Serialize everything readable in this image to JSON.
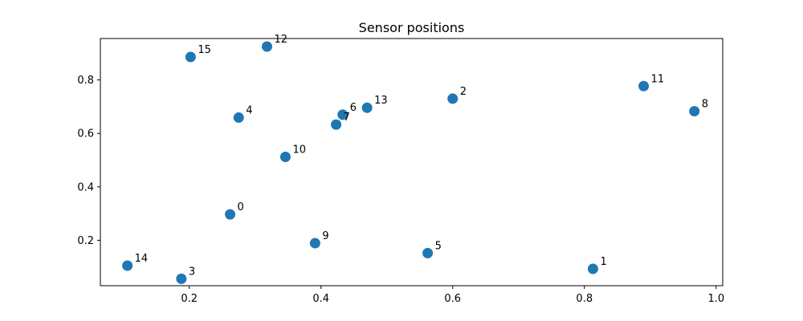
{
  "chart_data": {
    "type": "scatter",
    "title": "Sensor positions",
    "xlabel": "",
    "ylabel": "",
    "xlim": [
      0.065,
      1.01
    ],
    "ylim": [
      0.03,
      0.955
    ],
    "xticks": [
      0.2,
      0.4,
      0.6,
      0.8,
      1.0
    ],
    "xtick_labels": [
      "0.2",
      "0.4",
      "0.6",
      "0.8",
      "1.0"
    ],
    "yticks": [
      0.2,
      0.4,
      0.6,
      0.8
    ],
    "ytick_labels": [
      "0.2",
      "0.4",
      "0.6",
      "0.8"
    ],
    "grid": false,
    "marker_color": "#1f77b4",
    "points": [
      {
        "label": "0",
        "x": 0.262,
        "y": 0.297
      },
      {
        "label": "1",
        "x": 0.813,
        "y": 0.093
      },
      {
        "label": "2",
        "x": 0.6,
        "y": 0.73
      },
      {
        "label": "3",
        "x": 0.188,
        "y": 0.056
      },
      {
        "label": "4",
        "x": 0.275,
        "y": 0.659
      },
      {
        "label": "5",
        "x": 0.562,
        "y": 0.152
      },
      {
        "label": "6",
        "x": 0.433,
        "y": 0.67
      },
      {
        "label": "7",
        "x": 0.423,
        "y": 0.633
      },
      {
        "label": "8",
        "x": 0.967,
        "y": 0.683
      },
      {
        "label": "9",
        "x": 0.391,
        "y": 0.189
      },
      {
        "label": "10",
        "x": 0.346,
        "y": 0.512
      },
      {
        "label": "11",
        "x": 0.89,
        "y": 0.777
      },
      {
        "label": "12",
        "x": 0.318,
        "y": 0.925
      },
      {
        "label": "13",
        "x": 0.47,
        "y": 0.696
      },
      {
        "label": "14",
        "x": 0.106,
        "y": 0.105
      },
      {
        "label": "15",
        "x": 0.202,
        "y": 0.886
      }
    ]
  }
}
